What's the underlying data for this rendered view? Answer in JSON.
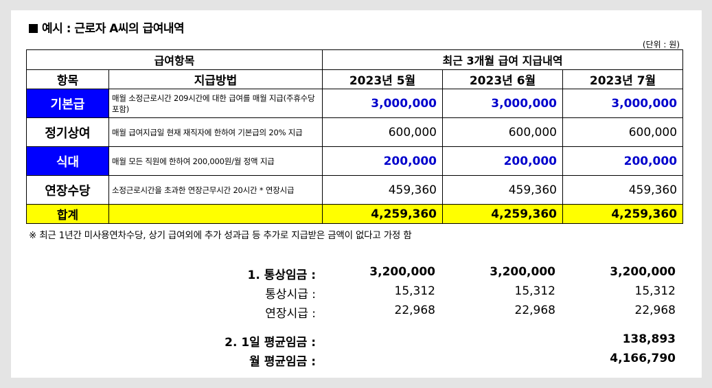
{
  "title": "예시 : 근로자 A씨의 급여내역",
  "unit": "(단위 : 원)",
  "table": {
    "header_item_group": "급여항목",
    "header_period_group": "최근 3개월 급여 지급내역",
    "col_item": "항목",
    "col_method": "지급방법",
    "months": [
      "2023년 5월",
      "2023년 6월",
      "2023년 7월"
    ],
    "rows": [
      {
        "item": "기본급",
        "method": "매월 소정근로시간 209시간에 대한 급여를 매월 지급(주휴수당 포함)",
        "values": [
          "3,000,000",
          "3,000,000",
          "3,000,000"
        ]
      },
      {
        "item": "정기상여",
        "method": "매월 급여지급일 현재 재직자에 한하여 기본급의 20% 지급",
        "values": [
          "600,000",
          "600,000",
          "600,000"
        ]
      },
      {
        "item": "식대",
        "method": "매월 모든 직원에 한하여 200,000원/월 정액 지급",
        "values": [
          "200,000",
          "200,000",
          "200,000"
        ]
      },
      {
        "item": "연장수당",
        "method": "소정근로시간을 초과한 연장근무시간 20시간 * 연장시급",
        "values": [
          "459,360",
          "459,360",
          "459,360"
        ]
      }
    ],
    "total_label": "합계",
    "totals": [
      "4,259,360",
      "4,259,360",
      "4,259,360"
    ],
    "highlight_color": "#0000ff",
    "total_row_color": "#ffff00"
  },
  "note": "※ 최근 1년간 미사용연차수당, 상기 급여외에 추가 성과급 등 추가로 지급받은 금액이 없다고 가정 함",
  "summary": {
    "ordinary_wage_label": "1. 통상임금 :",
    "ordinary_wage": [
      "3,200,000",
      "3,200,000",
      "3,200,000"
    ],
    "ordinary_hourly_label": "통상시급 :",
    "ordinary_hourly": [
      "15,312",
      "15,312",
      "15,312"
    ],
    "overtime_hourly_label": "연장시급 :",
    "overtime_hourly": [
      "22,968",
      "22,968",
      "22,968"
    ],
    "daily_avg_label": "2. 1일 평균임금 :",
    "daily_avg": "138,893",
    "monthly_avg_label": "월 평균임금 :",
    "monthly_avg": "4,166,790"
  }
}
